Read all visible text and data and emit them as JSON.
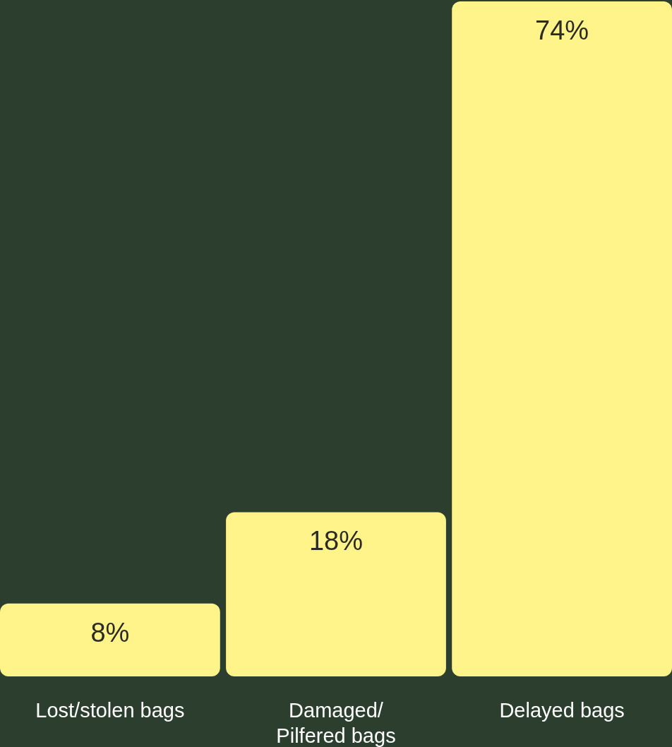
{
  "chart_data": {
    "type": "bar",
    "categories": [
      "Lost/stolen bags",
      "Damaged/\nPilfered bags",
      "Delayed bags"
    ],
    "values": [
      8,
      18,
      74
    ],
    "color": "#fff48a",
    "data_labels": true,
    "value_labels": [
      "8%",
      "18%",
      "74%"
    ]
  }
}
